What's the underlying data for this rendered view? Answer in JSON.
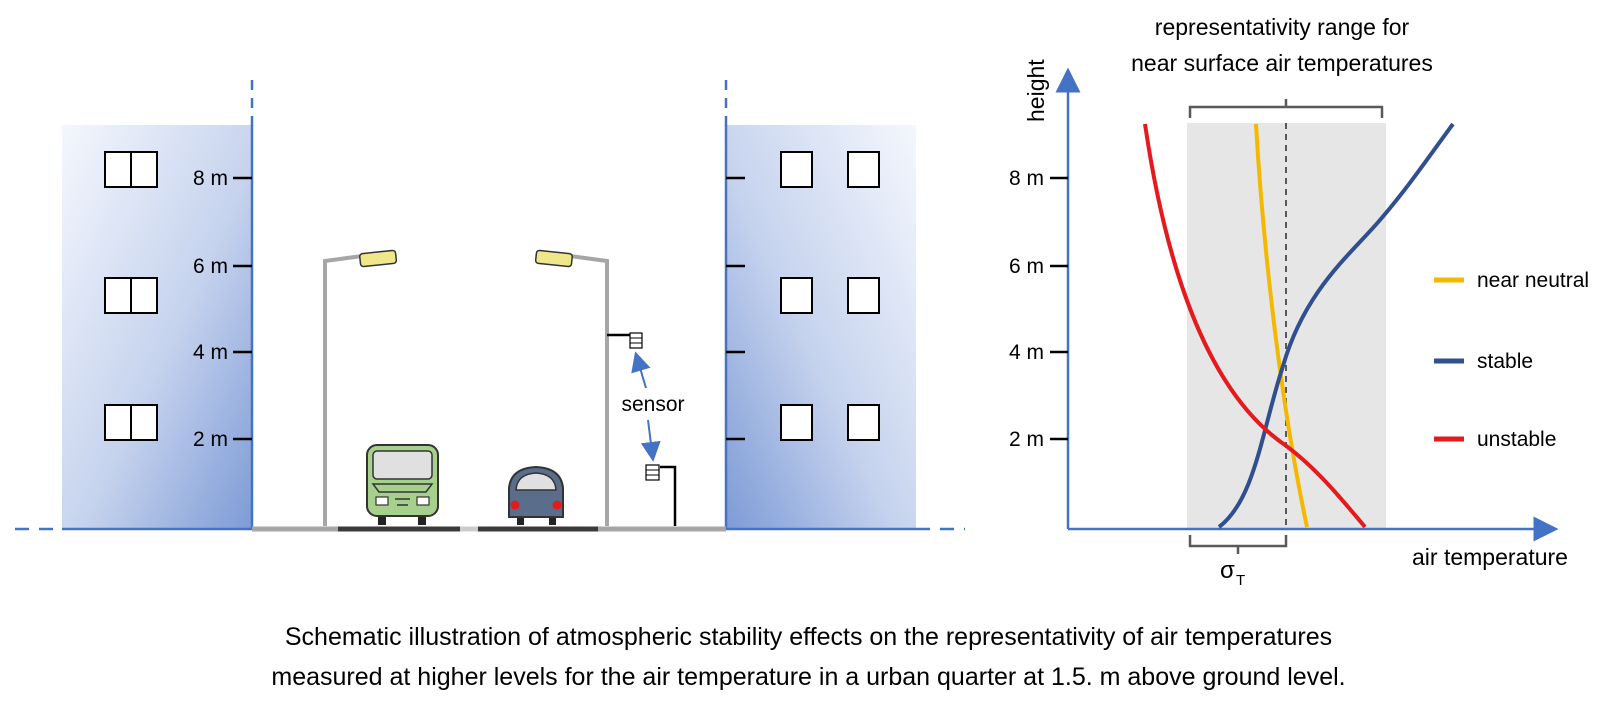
{
  "street": {
    "height_ticks_left": [
      "8 m",
      "6 m",
      "4 m",
      "2 m"
    ],
    "sensor_label": "sensor"
  },
  "profile_chart": {
    "range_label_line1": "representativity range for",
    "range_label_line2": "near surface air temperatures",
    "y_axis_label": "height",
    "x_axis_label": "air temperature",
    "y_ticks": [
      "8 m",
      "6 m",
      "4 m",
      "2 m"
    ],
    "sigma_label": "σ",
    "sigma_sub": "T",
    "legend": [
      {
        "label": "near neutral",
        "color": "#f5b800"
      },
      {
        "label": "stable",
        "color": "#2f4f8f"
      },
      {
        "label": "unstable",
        "color": "#e41a1c"
      }
    ]
  },
  "caption": {
    "line1": "Schematic illustration of atmospheric stability effects on the representativity of air temperatures",
    "line2": "measured at higher levels for the air temperature in a urban quarter at 1.5. m above ground level."
  },
  "colors": {
    "axis": "#4472c4",
    "building_edge": "#4472c4",
    "range_box": "#e6e6e6",
    "lamp_pole": "#a6a6a6"
  }
}
